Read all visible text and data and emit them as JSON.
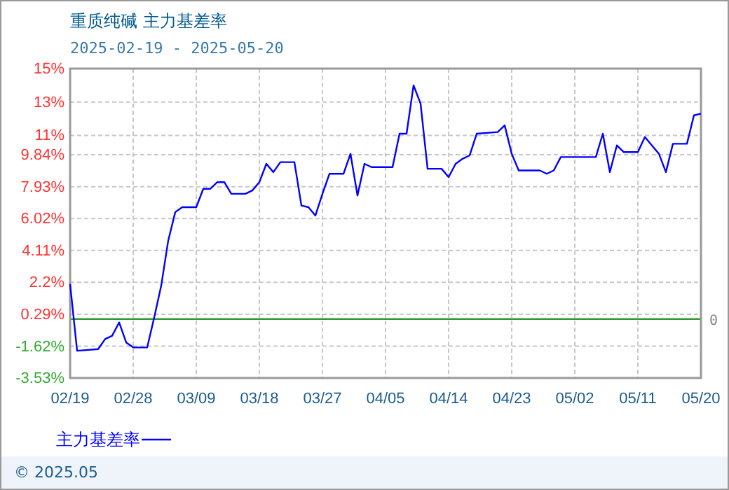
{
  "chart_data": {
    "type": "line",
    "title": "重质纯碱 主力基差率",
    "subtitle": "2025-02-19 - 2025-05-20",
    "annotations": [
      "© 2025.05"
    ],
    "x": [
      "2025-02-19",
      "2025-02-20",
      "2025-02-23",
      "2025-02-24",
      "2025-02-25",
      "2025-02-26",
      "2025-02-27",
      "2025-02-28",
      "2025-03-02",
      "2025-03-03",
      "2025-03-04",
      "2025-03-05",
      "2025-03-06",
      "2025-03-07",
      "2025-03-09",
      "2025-03-10",
      "2025-03-11",
      "2025-03-12",
      "2025-03-13",
      "2025-03-14",
      "2025-03-16",
      "2025-03-17",
      "2025-03-18",
      "2025-03-19",
      "2025-03-20",
      "2025-03-21",
      "2025-03-23",
      "2025-03-24",
      "2025-03-25",
      "2025-03-26",
      "2025-03-27",
      "2025-03-28",
      "2025-03-30",
      "2025-03-31",
      "2025-04-01",
      "2025-04-02",
      "2025-04-03",
      "2025-04-06",
      "2025-04-07",
      "2025-04-08",
      "2025-04-09",
      "2025-04-10",
      "2025-04-11",
      "2025-04-13",
      "2025-04-14",
      "2025-04-15",
      "2025-04-16",
      "2025-04-17",
      "2025-04-18",
      "2025-04-21",
      "2025-04-22",
      "2025-04-23",
      "2025-04-24",
      "2025-04-27",
      "2025-04-28",
      "2025-04-29",
      "2025-04-30",
      "2025-05-05",
      "2025-05-06",
      "2025-05-07",
      "2025-05-08",
      "2025-05-09",
      "2025-05-11",
      "2025-05-12",
      "2025-05-13",
      "2025-05-14",
      "2025-05-15",
      "2025-05-16",
      "2025-05-18",
      "2025-05-19",
      "2025-05-20"
    ],
    "series": [
      {
        "name": "主力基差率",
        "color": "#0000ff",
        "values": [
          2.1,
          -1.9,
          -1.8,
          -1.2,
          -1.0,
          -0.2,
          -1.4,
          -1.7,
          -1.7,
          0.1,
          2.0,
          4.7,
          6.4,
          6.7,
          6.7,
          7.8,
          7.8,
          8.2,
          8.2,
          7.5,
          7.5,
          7.7,
          8.2,
          9.3,
          8.8,
          9.4,
          9.4,
          6.8,
          6.7,
          6.2,
          7.5,
          8.7,
          8.7,
          9.9,
          7.4,
          9.3,
          9.1,
          9.1,
          11.1,
          11.1,
          14.0,
          12.9,
          9.0,
          9.0,
          8.5,
          9.3,
          9.6,
          9.8,
          11.1,
          11.2,
          11.6,
          9.9,
          8.9,
          8.9,
          8.7,
          8.9,
          9.7,
          9.7,
          11.1,
          8.8,
          10.4,
          10.0,
          10.0,
          10.9,
          10.4,
          9.9,
          8.8,
          10.5,
          10.5,
          12.2,
          12.3
        ]
      }
    ],
    "xlim": [
      "2025-02-19",
      "2025-05-20"
    ],
    "xticks": [
      {
        "value": "2025-02-19",
        "label": "02/19"
      },
      {
        "value": "2025-02-28",
        "label": "02/28"
      },
      {
        "value": "2025-03-09",
        "label": "03/09"
      },
      {
        "value": "2025-03-18",
        "label": "03/18"
      },
      {
        "value": "2025-03-27",
        "label": "03/27"
      },
      {
        "value": "2025-04-05",
        "label": "04/05"
      },
      {
        "value": "2025-04-14",
        "label": "04/14"
      },
      {
        "value": "2025-04-23",
        "label": "04/23"
      },
      {
        "value": "2025-05-02",
        "label": "05/02"
      },
      {
        "value": "2025-05-11",
        "label": "05/11"
      },
      {
        "value": "2025-05-20",
        "label": "05/20"
      }
    ],
    "ylim": [
      -3.53,
      15
    ],
    "yticks": [
      {
        "value": -3.53,
        "label": "-3.53%"
      },
      {
        "value": -1.62,
        "label": "-1.62%"
      },
      {
        "value": 0.29,
        "label": "0.29%"
      },
      {
        "value": 2.2,
        "label": "2.2%"
      },
      {
        "value": 4.11,
        "label": "4.11%"
      },
      {
        "value": 6.02,
        "label": "6.02%"
      },
      {
        "value": 7.93,
        "label": "7.93%"
      },
      {
        "value": 9.84,
        "label": "9.84%"
      },
      {
        "value": 11,
        "label": "11%"
      },
      {
        "value": 13,
        "label": "13%"
      },
      {
        "value": 15,
        "label": "15%"
      }
    ],
    "ref_lines": [
      {
        "axis": "y",
        "value": 0,
        "label": "0",
        "color": "#339933"
      }
    ],
    "grid": true,
    "legend": "bottom left",
    "line_style": "solid",
    "marker": "none"
  }
}
